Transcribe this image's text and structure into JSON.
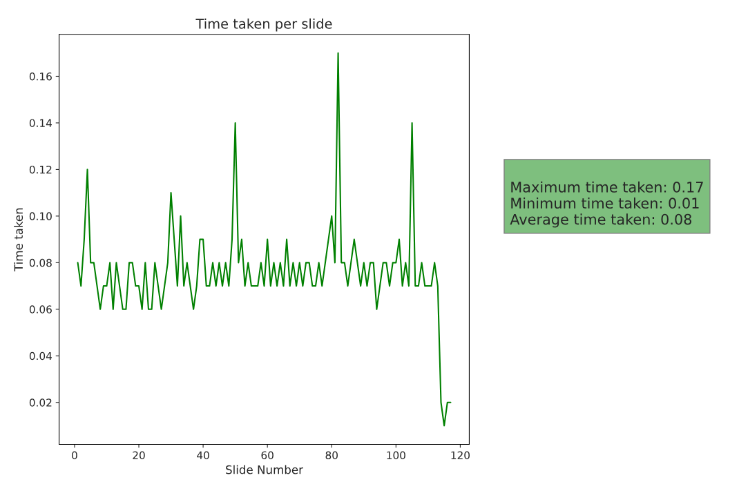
{
  "chart_data": {
    "type": "line",
    "title": "Time taken per slide",
    "xlabel": "Slide Number",
    "ylabel": "Time taken",
    "x": [
      1,
      2,
      3,
      4,
      5,
      6,
      7,
      8,
      9,
      10,
      11,
      12,
      13,
      14,
      15,
      16,
      17,
      18,
      19,
      20,
      21,
      22,
      23,
      24,
      25,
      26,
      27,
      28,
      29,
      30,
      31,
      32,
      33,
      34,
      35,
      36,
      37,
      38,
      39,
      40,
      41,
      42,
      43,
      44,
      45,
      46,
      47,
      48,
      49,
      50,
      51,
      52,
      53,
      54,
      55,
      56,
      57,
      58,
      59,
      60,
      61,
      62,
      63,
      64,
      65,
      66,
      67,
      68,
      69,
      70,
      71,
      72,
      73,
      74,
      75,
      76,
      77,
      78,
      79,
      80,
      81,
      82,
      83,
      84,
      85,
      86,
      87,
      88,
      89,
      90,
      91,
      92,
      93,
      94,
      95,
      96,
      97,
      98,
      99,
      100,
      101,
      102,
      103,
      104,
      105,
      106,
      107,
      108,
      109,
      110,
      111,
      112,
      113,
      114,
      115,
      116,
      117
    ],
    "series": [
      {
        "color": "#008000",
        "values": [
          0.08,
          0.07,
          0.09,
          0.12,
          0.08,
          0.08,
          0.07,
          0.06,
          0.07,
          0.07,
          0.08,
          0.06,
          0.08,
          0.07,
          0.06,
          0.06,
          0.08,
          0.08,
          0.07,
          0.07,
          0.06,
          0.08,
          0.06,
          0.06,
          0.08,
          0.07,
          0.06,
          0.07,
          0.08,
          0.11,
          0.09,
          0.07,
          0.1,
          0.07,
          0.08,
          0.07,
          0.06,
          0.07,
          0.09,
          0.09,
          0.07,
          0.07,
          0.08,
          0.07,
          0.08,
          0.07,
          0.08,
          0.07,
          0.09,
          0.14,
          0.08,
          0.09,
          0.07,
          0.08,
          0.07,
          0.07,
          0.07,
          0.08,
          0.07,
          0.09,
          0.07,
          0.08,
          0.07,
          0.08,
          0.07,
          0.09,
          0.07,
          0.08,
          0.07,
          0.08,
          0.07,
          0.08,
          0.08,
          0.07,
          0.07,
          0.08,
          0.07,
          0.08,
          0.09,
          0.1,
          0.08,
          0.17,
          0.08,
          0.08,
          0.07,
          0.08,
          0.09,
          0.08,
          0.07,
          0.08,
          0.07,
          0.08,
          0.08,
          0.06,
          0.07,
          0.08,
          0.08,
          0.07,
          0.08,
          0.08,
          0.09,
          0.07,
          0.08,
          0.07,
          0.14,
          0.07,
          0.07,
          0.08,
          0.07,
          0.07,
          0.07,
          0.08,
          0.07,
          0.02,
          0.01,
          0.02,
          0.02
        ]
      }
    ],
    "xlim": [
      -4.8,
      122.8
    ],
    "ylim": [
      0.002,
      0.178
    ],
    "xticks": [
      0,
      20,
      40,
      60,
      80,
      100,
      120
    ],
    "yticks": [
      {
        "value": 0.02,
        "label": "0.02"
      },
      {
        "value": 0.04,
        "label": "0.04"
      },
      {
        "value": 0.06,
        "label": "0.06"
      },
      {
        "value": 0.08,
        "label": "0.08"
      },
      {
        "value": 0.1,
        "label": "0.10"
      },
      {
        "value": 0.12,
        "label": "0.12"
      },
      {
        "value": 0.14,
        "label": "0.14"
      },
      {
        "value": 0.16,
        "label": "0.16"
      }
    ],
    "grid": false,
    "annotations": [
      "Maximum time taken: 0.17",
      "Minimum time taken: 0.01",
      "Average time taken: 0.08"
    ]
  }
}
